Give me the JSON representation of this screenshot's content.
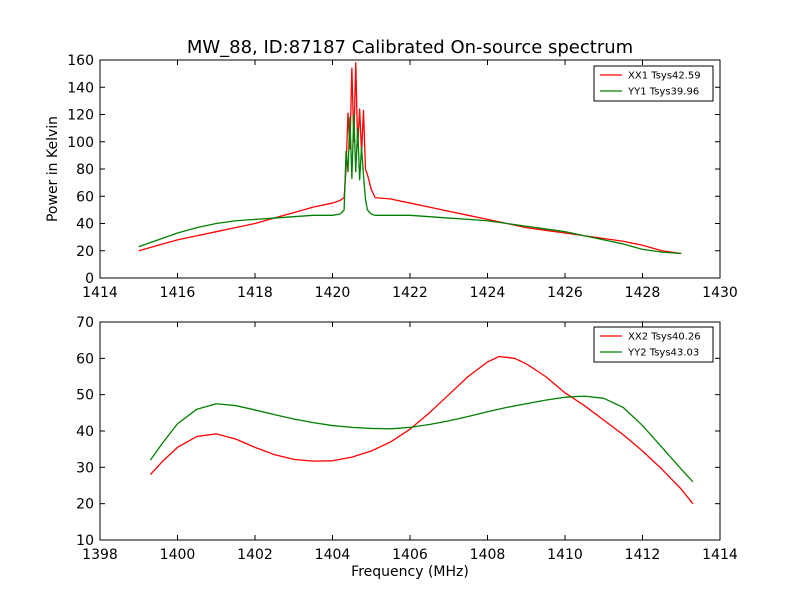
{
  "figure": {
    "title": "MW_88, ID:87187 Calibrated On-source spectrum",
    "xlabel": "Frequency (MHz)",
    "top_ylabel": "Power in Kelvin"
  },
  "chart_data": [
    {
      "type": "line",
      "title": "MW_88, ID:87187 Calibrated On-source spectrum",
      "xlabel": "",
      "ylabel": "Power in Kelvin",
      "xlim": [
        1414,
        1430
      ],
      "ylim": [
        0,
        160
      ],
      "xticks": [
        1414,
        1416,
        1418,
        1420,
        1422,
        1424,
        1426,
        1428,
        1430
      ],
      "yticks": [
        0,
        20,
        40,
        60,
        80,
        100,
        120,
        140,
        160
      ],
      "grid": false,
      "legend": "top-right",
      "series": [
        {
          "name": "XX1 Tsys42.59",
          "color": "#ff0000",
          "x": [
            1415.0,
            1415.5,
            1416.0,
            1416.5,
            1417.0,
            1417.5,
            1418.0,
            1418.5,
            1419.0,
            1419.5,
            1420.0,
            1420.2,
            1420.3,
            1420.35,
            1420.4,
            1420.45,
            1420.5,
            1420.55,
            1420.6,
            1420.65,
            1420.7,
            1420.75,
            1420.8,
            1420.85,
            1420.9,
            1421.0,
            1421.1,
            1421.5,
            1422.0,
            1422.5,
            1423.0,
            1423.5,
            1424.0,
            1424.5,
            1425.0,
            1425.5,
            1426.0,
            1426.5,
            1427.0,
            1427.5,
            1428.0,
            1428.5,
            1429.0
          ],
          "values": [
            20,
            24,
            28,
            31,
            34,
            37,
            40,
            44,
            48,
            52,
            55,
            57,
            59,
            80,
            121,
            95,
            154,
            100,
            158,
            96,
            124,
            92,
            123,
            80,
            76,
            65,
            59,
            58,
            55,
            52,
            49,
            46,
            43,
            40,
            37,
            35,
            33,
            31,
            29,
            27,
            24,
            20,
            18
          ]
        },
        {
          "name": "YY1 Tsys39.96",
          "color": "#008000",
          "x": [
            1415.0,
            1415.5,
            1416.0,
            1416.5,
            1417.0,
            1417.5,
            1418.0,
            1418.5,
            1419.0,
            1419.5,
            1420.0,
            1420.2,
            1420.3,
            1420.35,
            1420.4,
            1420.45,
            1420.5,
            1420.55,
            1420.6,
            1420.65,
            1420.7,
            1420.75,
            1420.8,
            1420.85,
            1420.9,
            1421.0,
            1421.1,
            1421.5,
            1422.0,
            1422.5,
            1423.0,
            1423.5,
            1424.0,
            1424.5,
            1425.0,
            1425.5,
            1426.0,
            1426.5,
            1427.0,
            1427.5,
            1428.0,
            1428.5,
            1429.0
          ],
          "values": [
            23,
            28,
            33,
            37,
            40,
            42,
            43,
            44,
            45,
            46,
            46,
            47,
            50,
            93,
            78,
            118,
            73,
            120,
            78,
            110,
            72,
            96,
            75,
            58,
            50,
            47,
            46,
            46,
            46,
            45,
            44,
            43,
            42,
            40,
            38,
            36,
            34,
            31,
            28,
            25,
            21,
            19,
            18
          ]
        }
      ]
    },
    {
      "type": "line",
      "title": "",
      "xlabel": "Frequency (MHz)",
      "ylabel": "",
      "xlim": [
        1398,
        1414
      ],
      "ylim": [
        10,
        70
      ],
      "xticks": [
        1398,
        1400,
        1402,
        1404,
        1406,
        1408,
        1410,
        1412,
        1414
      ],
      "yticks": [
        10,
        20,
        30,
        40,
        50,
        60,
        70
      ],
      "grid": false,
      "legend": "top-right",
      "series": [
        {
          "name": "XX2 Tsys40.26",
          "color": "#ff0000",
          "x": [
            1399.3,
            1399.6,
            1400.0,
            1400.5,
            1401.0,
            1401.5,
            1402.0,
            1402.5,
            1403.0,
            1403.5,
            1404.0,
            1404.5,
            1405.0,
            1405.5,
            1406.0,
            1406.5,
            1407.0,
            1407.5,
            1408.0,
            1408.3,
            1408.7,
            1409.0,
            1409.5,
            1410.0,
            1410.5,
            1411.0,
            1411.5,
            1412.0,
            1412.5,
            1413.0,
            1413.3
          ],
          "values": [
            28,
            31.5,
            35.5,
            38.5,
            39.2,
            37.8,
            35.5,
            33.5,
            32.2,
            31.7,
            31.8,
            32.8,
            34.5,
            37,
            40.5,
            45,
            50,
            55,
            59,
            60.5,
            60,
            58.5,
            55,
            50.5,
            47,
            43,
            39,
            34.5,
            29.5,
            24,
            20
          ]
        },
        {
          "name": "YY2 Tsys43.03",
          "color": "#008000",
          "x": [
            1399.3,
            1399.6,
            1400.0,
            1400.5,
            1401.0,
            1401.5,
            1402.0,
            1402.5,
            1403.0,
            1403.5,
            1404.0,
            1404.5,
            1405.0,
            1405.5,
            1406.0,
            1406.5,
            1407.0,
            1407.5,
            1408.0,
            1408.5,
            1409.0,
            1409.5,
            1410.0,
            1410.5,
            1411.0,
            1411.5,
            1412.0,
            1412.5,
            1413.0,
            1413.3
          ],
          "values": [
            32,
            36.5,
            42,
            46,
            47.5,
            47,
            45.8,
            44.5,
            43.3,
            42.3,
            41.5,
            41,
            40.7,
            40.6,
            41,
            41.8,
            42.8,
            44,
            45.3,
            46.5,
            47.5,
            48.5,
            49.3,
            49.6,
            49,
            46.5,
            41.5,
            35.5,
            29.5,
            26
          ]
        }
      ]
    }
  ]
}
